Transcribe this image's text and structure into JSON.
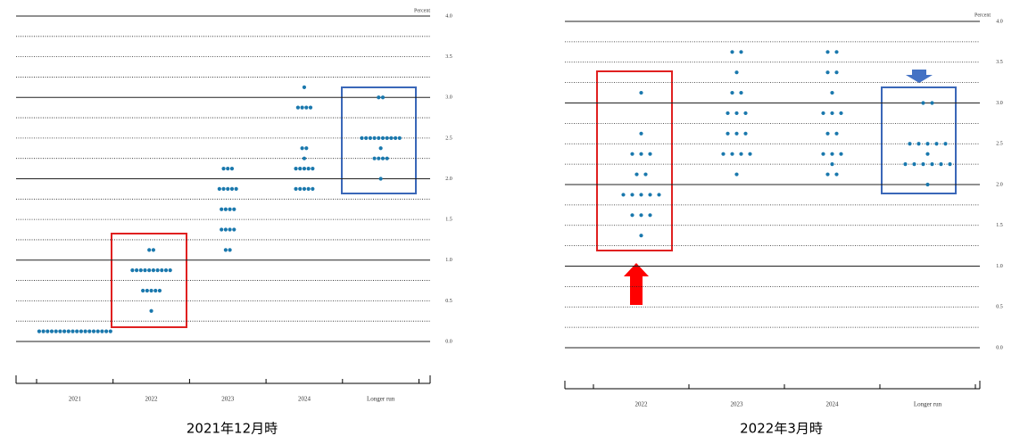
{
  "chart_data": [
    {
      "type": "dot",
      "caption": "2021年12月時",
      "ylabel": "Percent",
      "color": "#1a78ad",
      "categories": [
        "2021",
        "2022",
        "2023",
        "2024",
        "Longer run"
      ],
      "dots": [
        [
          0.125,
          0.125,
          0.125,
          0.125,
          0.125,
          0.125,
          0.125,
          0.125,
          0.125,
          0.125,
          0.125,
          0.125,
          0.125,
          0.125,
          0.125,
          0.125,
          0.125,
          0.125
        ],
        [
          0.375,
          0.625,
          0.625,
          0.625,
          0.625,
          0.625,
          0.875,
          0.875,
          0.875,
          0.875,
          0.875,
          0.875,
          0.875,
          0.875,
          0.875,
          0.875,
          1.125,
          1.125
        ],
        [
          1.125,
          1.125,
          1.375,
          1.375,
          1.375,
          1.375,
          1.625,
          1.625,
          1.625,
          1.625,
          1.875,
          1.875,
          1.875,
          1.875,
          1.875,
          2.125,
          2.125,
          2.125
        ],
        [
          1.875,
          1.875,
          1.875,
          1.875,
          1.875,
          2.125,
          2.125,
          2.125,
          2.125,
          2.125,
          2.25,
          2.375,
          2.375,
          2.875,
          2.875,
          2.875,
          2.875,
          3.125
        ],
        [
          2.0,
          2.25,
          2.25,
          2.25,
          2.25,
          2.375,
          2.5,
          2.5,
          2.5,
          2.5,
          2.5,
          2.5,
          2.5,
          2.5,
          2.5,
          2.5,
          3.0,
          3.0
        ]
      ],
      "ylim": [
        0,
        4
      ],
      "yticks": [
        {
          "value": 0,
          "label": "0.0"
        },
        {
          "value": 0.5,
          "label": "0.5"
        },
        {
          "value": 1,
          "label": "1.0"
        },
        {
          "value": 1.5,
          "label": "1.5"
        },
        {
          "value": 2,
          "label": "2.0"
        },
        {
          "value": 2.5,
          "label": "2.5"
        },
        {
          "value": 3,
          "label": "3.0"
        },
        {
          "value": 3.5,
          "label": "3.5"
        },
        {
          "value": 4,
          "label": "4.0"
        }
      ]
    },
    {
      "type": "dot",
      "caption": "2022年3月時",
      "ylabel": "Percent",
      "color": "#1a78ad",
      "categories": [
        "2022",
        "2023",
        "2024",
        "Longer run"
      ],
      "dots": [
        [
          1.375,
          1.625,
          1.625,
          1.625,
          1.875,
          1.875,
          1.875,
          1.875,
          1.875,
          2.125,
          2.125,
          2.375,
          2.375,
          2.375,
          2.625,
          3.125
        ],
        [
          2.125,
          2.375,
          2.375,
          2.375,
          2.375,
          2.625,
          2.625,
          2.625,
          2.875,
          2.875,
          2.875,
          3.125,
          3.125,
          3.375,
          3.625,
          3.625
        ],
        [
          2.125,
          2.125,
          2.25,
          2.375,
          2.375,
          2.375,
          2.625,
          2.625,
          2.875,
          2.875,
          2.875,
          3.125,
          3.375,
          3.375,
          3.625,
          3.625
        ],
        [
          2.0,
          2.25,
          2.25,
          2.25,
          2.25,
          2.25,
          2.25,
          2.375,
          2.5,
          2.5,
          2.5,
          2.5,
          2.5,
          3.0,
          3.0
        ]
      ],
      "ylim": [
        0,
        4
      ],
      "yticks": [
        {
          "value": 0,
          "label": "0.0"
        },
        {
          "value": 0.5,
          "label": "0.5"
        },
        {
          "value": 1,
          "label": "1.0"
        },
        {
          "value": 1.5,
          "label": "1.5"
        },
        {
          "value": 2,
          "label": "2.0"
        },
        {
          "value": 2.5,
          "label": "2.5"
        },
        {
          "value": 3,
          "label": "3.0"
        },
        {
          "value": 3.5,
          "label": "3.5"
        },
        {
          "value": 4,
          "label": "4.0"
        }
      ]
    }
  ]
}
